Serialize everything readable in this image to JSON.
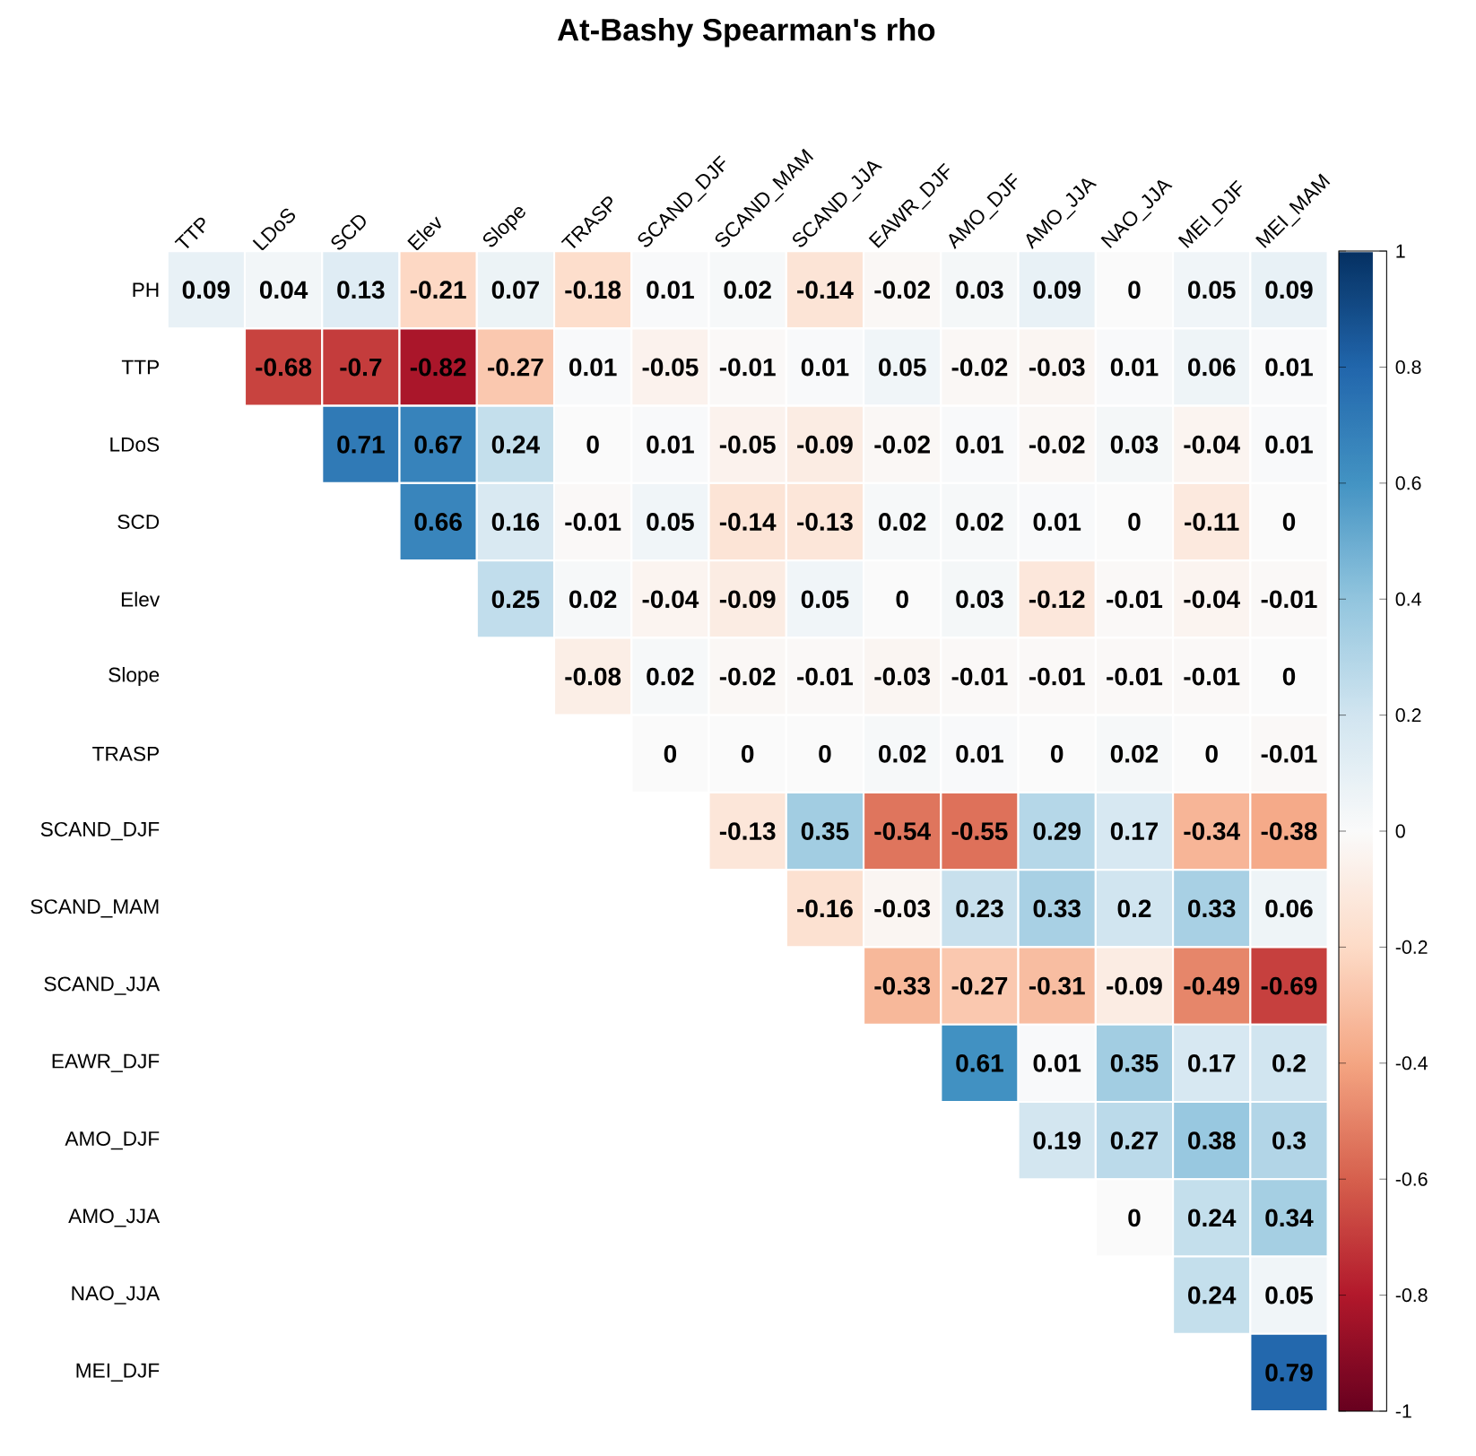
{
  "chart_data": {
    "type": "heatmap",
    "title": "At-Bashy Spearman's rho",
    "categories": [
      "TTP",
      "LDoS",
      "SCD",
      "Elev",
      "Slope",
      "TRASP",
      "SCAND_DJF",
      "SCAND_MAM",
      "SCAND_JJA",
      "EAWR_DJF",
      "AMO_DJF",
      "AMO_JJA",
      "NAO_JJA",
      "MEI_DJF",
      "MEI_MAM"
    ],
    "y_categories": [
      "PH",
      "TTP",
      "LDoS",
      "SCD",
      "Elev",
      "Slope",
      "TRASP",
      "SCAND_DJF",
      "SCAND_MAM",
      "SCAND_JJA",
      "EAWR_DJF",
      "AMO_DJF",
      "AMO_JJA",
      "NAO_JJA",
      "MEI_DJF"
    ],
    "cells": [
      [
        0.09,
        0.04,
        0.13,
        -0.21,
        0.07,
        -0.18,
        0.01,
        0.02,
        -0.14,
        -0.02,
        0.03,
        0.09,
        0,
        0.05,
        0.09
      ],
      [
        null,
        -0.68,
        -0.7,
        -0.82,
        -0.27,
        0.01,
        -0.05,
        -0.01,
        0.01,
        0.05,
        -0.02,
        -0.03,
        0.01,
        0.06,
        0.01
      ],
      [
        null,
        null,
        0.71,
        0.67,
        0.24,
        0,
        0.01,
        -0.05,
        -0.09,
        -0.02,
        0.01,
        -0.02,
        0.03,
        -0.04,
        0.01
      ],
      [
        null,
        null,
        null,
        0.66,
        0.16,
        -0.01,
        0.05,
        -0.14,
        -0.13,
        0.02,
        0.02,
        0.01,
        0,
        -0.11,
        0
      ],
      [
        null,
        null,
        null,
        null,
        0.25,
        0.02,
        -0.04,
        -0.09,
        0.05,
        0,
        0.03,
        -0.12,
        -0.01,
        -0.04,
        -0.01
      ],
      [
        null,
        null,
        null,
        null,
        null,
        -0.08,
        0.02,
        -0.02,
        -0.01,
        -0.03,
        -0.01,
        -0.01,
        -0.01,
        -0.01,
        0
      ],
      [
        null,
        null,
        null,
        null,
        null,
        null,
        0,
        0,
        0,
        0.02,
        0.01,
        0,
        0.02,
        0,
        -0.01
      ],
      [
        null,
        null,
        null,
        null,
        null,
        null,
        null,
        -0.13,
        0.35,
        -0.54,
        -0.55,
        0.29,
        0.17,
        -0.34,
        -0.38
      ],
      [
        null,
        null,
        null,
        null,
        null,
        null,
        null,
        null,
        -0.16,
        -0.03,
        0.23,
        0.33,
        0.2,
        0.33,
        0.06
      ],
      [
        null,
        null,
        null,
        null,
        null,
        null,
        null,
        null,
        null,
        -0.33,
        -0.27,
        -0.31,
        -0.09,
        -0.49,
        -0.69
      ],
      [
        null,
        null,
        null,
        null,
        null,
        null,
        null,
        null,
        null,
        null,
        0.61,
        0.01,
        0.35,
        0.17,
        0.2
      ],
      [
        null,
        null,
        null,
        null,
        null,
        null,
        null,
        null,
        null,
        null,
        null,
        0.19,
        0.27,
        0.38,
        0.3
      ],
      [
        null,
        null,
        null,
        null,
        null,
        null,
        null,
        null,
        null,
        null,
        null,
        null,
        0,
        0.24,
        0.34
      ],
      [
        null,
        null,
        null,
        null,
        null,
        null,
        null,
        null,
        null,
        null,
        null,
        null,
        null,
        0.24,
        0.05
      ],
      [
        null,
        null,
        null,
        null,
        null,
        null,
        null,
        null,
        null,
        null,
        null,
        null,
        null,
        null,
        0.79
      ]
    ],
    "clim": [
      -1,
      1
    ],
    "cticks": [
      -1,
      -0.8,
      -0.6,
      -0.4,
      -0.2,
      0,
      0.2,
      0.4,
      0.6,
      0.8,
      1
    ],
    "data_labels": true
  }
}
